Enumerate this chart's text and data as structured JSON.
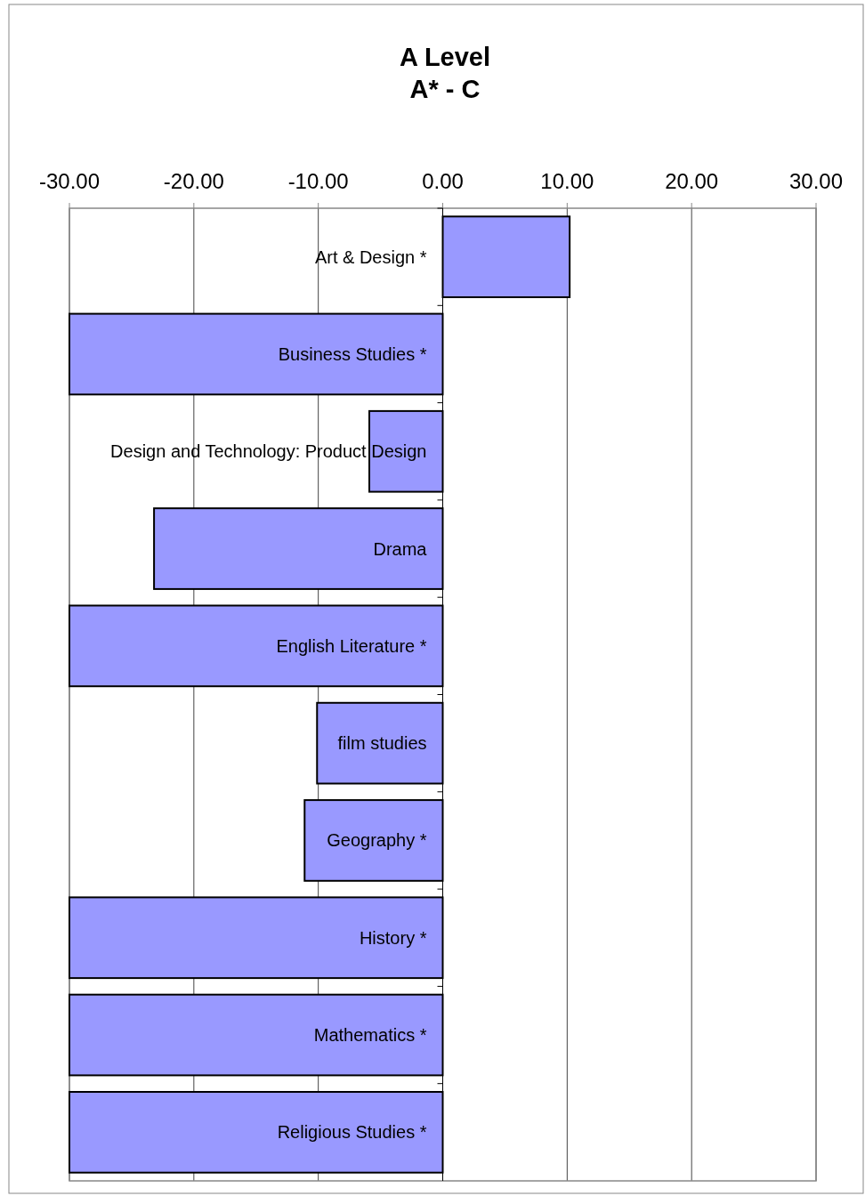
{
  "chart_data": {
    "type": "bar",
    "orientation": "horizontal",
    "title": "A Level\nA* - C",
    "categories": [
      "Art & Design *",
      "Business Studies *",
      "Design and Technology: Product Design",
      "Drama",
      "English Literature *",
      "film studies",
      "Geography *",
      "History *",
      "Mathematics *",
      "Religious Studies *"
    ],
    "values": [
      10.2,
      -30,
      -5.9,
      -23.2,
      -30,
      -10.1,
      -11.1,
      -30,
      -30,
      -30
    ],
    "color": "#9999ff",
    "xlim": [
      -30,
      30
    ],
    "xticks": [
      {
        "value": -30,
        "label": "-30.00"
      },
      {
        "value": -20,
        "label": "-20.00"
      },
      {
        "value": -10,
        "label": "-10.00"
      },
      {
        "value": 0,
        "label": "0.00"
      },
      {
        "value": 10,
        "label": "10.00"
      },
      {
        "value": 20,
        "label": "20.00"
      },
      {
        "value": 30,
        "label": "30.00"
      }
    ],
    "grid": "x"
  }
}
